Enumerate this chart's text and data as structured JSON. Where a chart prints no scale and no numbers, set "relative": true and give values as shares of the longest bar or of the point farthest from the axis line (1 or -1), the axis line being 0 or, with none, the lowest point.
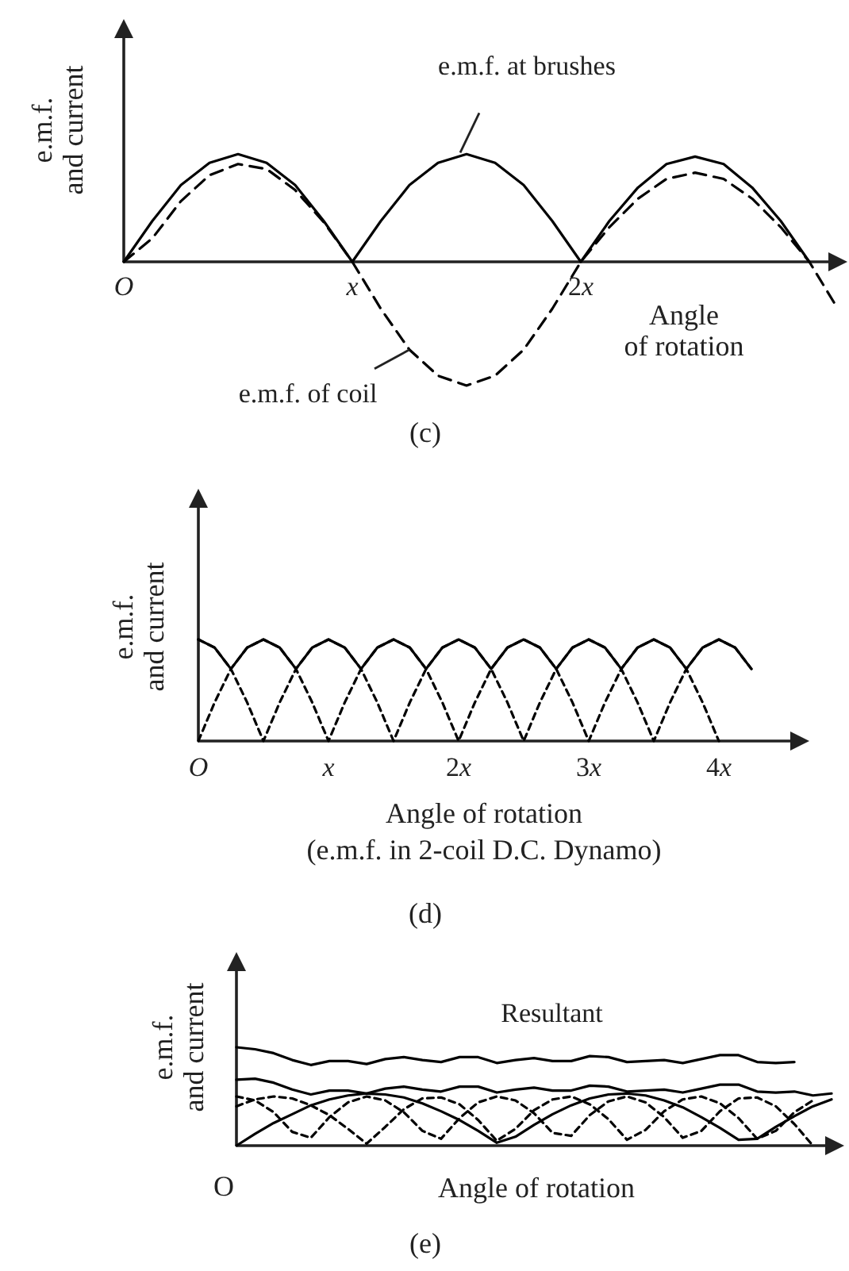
{
  "chart_data": [
    {
      "type": "line",
      "title": "(c)",
      "xlabel": "Angle\nof rotation",
      "ylabel": "e.m.f.\nand current",
      "relative": true,
      "tick_labels": "x",
      "categories": [
        "O",
        null,
        null,
        null,
        null,
        null,
        null,
        null,
        "x",
        null,
        null,
        null,
        null,
        null,
        null,
        null,
        "2x",
        null,
        null,
        null,
        null,
        null,
        null,
        null,
        null,
        null
      ],
      "series": [
        {
          "name": "e.m.f. at brushes",
          "color": "#000000",
          "line_style": "solid",
          "values": [
            0,
            0.33,
            0.62,
            0.8,
            0.87,
            0.8,
            0.62,
            0.33,
            0,
            0.33,
            0.62,
            0.8,
            0.87,
            0.8,
            0.62,
            0.33,
            0,
            0.33,
            0.6,
            0.79,
            0.85,
            0.79,
            0.6,
            0.33,
            0,
            null
          ]
        },
        {
          "name": "e.m.f. of coil",
          "color": "#000000",
          "line_style": "dashed",
          "values": [
            0,
            0.19,
            0.49,
            0.7,
            0.79,
            0.75,
            0.58,
            0.32,
            0,
            -0.38,
            -0.71,
            -0.92,
            -1,
            -0.92,
            -0.71,
            -0.38,
            0,
            0.28,
            0.51,
            0.67,
            0.72,
            0.67,
            0.51,
            0.28,
            0,
            -0.38
          ]
        }
      ]
    },
    {
      "type": "line",
      "title": "(d)",
      "xlabel": "Angle of rotation",
      "annotations": [
        "(e.m.f. in 2-coil D.C. Dynamo)"
      ],
      "ylabel": "e.m.f.\nand current",
      "relative": true,
      "tick_labels": "x",
      "categories": [
        "O",
        null,
        null,
        null,
        null,
        null,
        null,
        null,
        "x",
        null,
        null,
        null,
        null,
        null,
        null,
        null,
        "2x",
        null,
        null,
        null,
        null,
        null,
        null,
        null,
        "3x",
        null,
        null,
        null,
        null,
        null,
        null,
        null,
        "4x",
        null,
        null
      ],
      "series": [
        {
          "color": "#000000",
          "line_style": "dashed",
          "values": [
            1,
            0.92,
            0.71,
            0.38,
            0,
            0.38,
            0.71,
            0.92,
            1,
            0.92,
            0.71,
            0.38,
            0,
            0.38,
            0.71,
            0.92,
            1,
            0.92,
            0.71,
            0.38,
            0,
            0.38,
            0.71,
            0.92,
            1,
            0.92,
            0.71,
            0.38,
            0,
            0.38,
            0.71,
            0.92,
            1,
            0.92,
            0.71
          ]
        },
        {
          "color": "#000000",
          "line_style": "dashed",
          "values": [
            0,
            0.38,
            0.71,
            0.92,
            1,
            0.92,
            0.71,
            0.38,
            0,
            0.38,
            0.71,
            0.92,
            1,
            0.92,
            0.71,
            0.38,
            0,
            0.38,
            0.71,
            0.92,
            1,
            0.92,
            0.71,
            0.38,
            0,
            0.38,
            0.71,
            0.92,
            1,
            0.92,
            0.71,
            0.38,
            0,
            null,
            null
          ]
        },
        {
          "color": "#000000",
          "line_style": "solid",
          "values": [
            1,
            0.92,
            0.71,
            0.92,
            1,
            0.92,
            0.71,
            0.92,
            1,
            0.92,
            0.71,
            0.92,
            1,
            0.92,
            0.71,
            0.92,
            1,
            0.92,
            0.71,
            0.92,
            1,
            0.92,
            0.71,
            0.92,
            1,
            0.92,
            0.71,
            0.92,
            1,
            0.92,
            0.71,
            0.92,
            1,
            0.92,
            0.71
          ]
        }
      ]
    },
    {
      "type": "line",
      "title": "(e)",
      "xlabel": "Angle of rotation",
      "annotations": [
        "O"
      ],
      "ylabel": "e.m.f.\nand current",
      "relative": true,
      "tick_labels": "x",
      "categories": [
        null,
        null,
        null,
        null,
        null,
        null,
        null,
        null,
        null,
        null,
        null,
        null,
        null,
        null,
        null,
        null,
        null,
        null,
        null,
        null,
        null,
        null,
        null,
        null,
        null,
        null,
        null,
        null,
        null,
        null,
        null,
        null,
        null
      ],
      "series": [
        {
          "color": "#000000",
          "line_style": "solid",
          "values": [
            0,
            0.12,
            0.23,
            0.32,
            0.41,
            0.47,
            0.51,
            0.53,
            0.52,
            0.49,
            0.43,
            0.35,
            0.26,
            0.15,
            0.03,
            0.09,
            0.21,
            0.32,
            0.41,
            0.48,
            0.52,
            0.53,
            0.51,
            0.46,
            0.39,
            0.29,
            0.18,
            0.06,
            0.07,
            0.19,
            0.3,
            0.4,
            0.47
          ]
        },
        {
          "color": "#000000",
          "line_style": "dashed",
          "values": [
            0.5,
            0.46,
            0.34,
            0.14,
            0.08,
            0.29,
            0.44,
            0.5,
            0.46,
            0.34,
            0.15,
            0.07,
            0.28,
            0.44,
            0.5,
            0.46,
            0.33,
            0.13,
            0.1,
            0.31,
            0.45,
            0.5,
            0.44,
            0.29,
            0.08,
            0.15,
            0.35,
            0.48,
            0.49,
            0.4,
            0.22,
            0,
            null
          ]
        },
        {
          "color": "#000000",
          "line_style": "dashed",
          "values": [
            0.4,
            0.47,
            0.5,
            0.48,
            0.41,
            0.31,
            0.17,
            0.02,
            0.19,
            0.37,
            0.48,
            0.49,
            0.42,
            0.26,
            0.05,
            0.17,
            0.36,
            0.47,
            0.5,
            0.42,
            0.27,
            0.06,
            0.16,
            0.35,
            0.47,
            0.5,
            0.43,
            0.28,
            0.07,
            0.15,
            0.34,
            0.46,
            null
          ]
        },
        {
          "color": "#000000",
          "line_style": "solid",
          "values": [
            0.67,
            0.68,
            0.64,
            0.57,
            0.52,
            0.56,
            0.56,
            0.53,
            0.58,
            0.6,
            0.57,
            0.55,
            0.6,
            0.6,
            0.54,
            0.57,
            0.59,
            0.56,
            0.56,
            0.61,
            0.6,
            0.55,
            0.56,
            0.57,
            0.54,
            0.58,
            0.62,
            0.62,
            0.55,
            0.54,
            0.55,
            0.51,
            0.53
          ]
        },
        {
          "name": "Resultant",
          "color": "#000000",
          "line_style": "solid",
          "values": [
            1,
            0.98,
            0.94,
            0.87,
            0.82,
            0.86,
            0.86,
            0.83,
            0.88,
            0.9,
            0.87,
            0.85,
            0.9,
            0.9,
            0.84,
            0.87,
            0.89,
            0.86,
            0.86,
            0.91,
            0.9,
            0.85,
            0.86,
            0.87,
            0.84,
            0.88,
            0.92,
            0.92,
            0.85,
            0.84,
            0.85,
            null,
            null
          ]
        }
      ]
    }
  ]
}
